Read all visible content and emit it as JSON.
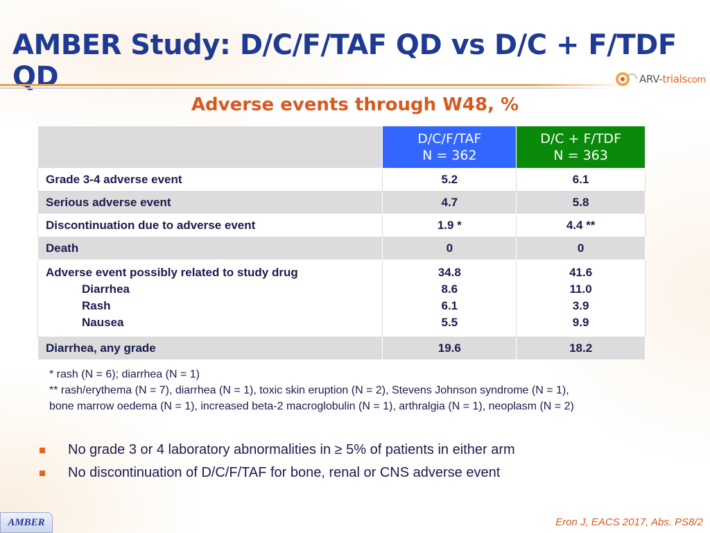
{
  "title": "AMBER Study: D/C/F/TAF QD vs D/C + F/TDF QD",
  "logo": {
    "part1": "ARV-",
    "part2": "trials",
    "part3": "com",
    "icon": "arv-trials-logo-icon"
  },
  "subtitle": "Adverse events through W48, %",
  "table": {
    "headers": [
      {
        "line1": "D/C/F/TAF",
        "line2": "N = 362",
        "color": "#3366ff"
      },
      {
        "line1": "D/C + F/TDF",
        "line2": "N = 363",
        "color": "#0a8a0a"
      }
    ],
    "rows": [
      {
        "label": "Grade 3-4 adverse event",
        "taf": "5.2",
        "tdf": "6.1"
      },
      {
        "label": "Serious adverse event",
        "taf": "4.7",
        "tdf": "5.8"
      },
      {
        "label": "Discontinuation due to adverse event",
        "taf": "1.9 *",
        "tdf": "4.4 **"
      },
      {
        "label": "Death",
        "taf": "0",
        "tdf": "0"
      },
      {
        "label": "Adverse event possibly related to study drug",
        "taf": "34.8",
        "tdf": "41.6",
        "sub": [
          {
            "label": "Diarrhea",
            "taf": "8.6",
            "tdf": "11.0"
          },
          {
            "label": "Rash",
            "taf": "6.1",
            "tdf": "3.9"
          },
          {
            "label": "Nausea",
            "taf": "5.5",
            "tdf": "9.9"
          }
        ]
      },
      {
        "label": "Diarrhea, any grade",
        "taf": "19.6",
        "tdf": "18.2"
      }
    ]
  },
  "footnotes": [
    "* rash (N = 6); diarrhea (N = 1)",
    "** rash/erythema (N = 7), diarrhea (N = 1), toxic skin eruption (N = 2), Stevens Johnson syndrome (N = 1),",
    "bone marrow oedema (N = 1), increased beta-2 macroglobulin (N = 1), arthralgia (N = 1), neoplasm (N = 2)"
  ],
  "bullets": [
    "No grade 3 or 4 laboratory abnormalities in ≥ 5% of patients in either arm",
    "No discontinuation of D/C/F/TAF for bone, renal or CNS adverse event"
  ],
  "badge": "AMBER",
  "citation": "Eron J, EACS 2017, Abs. PS8/2",
  "colors": {
    "title": "#1f3a93",
    "accent": "#d65a1e",
    "bullet": "#e0661f"
  }
}
